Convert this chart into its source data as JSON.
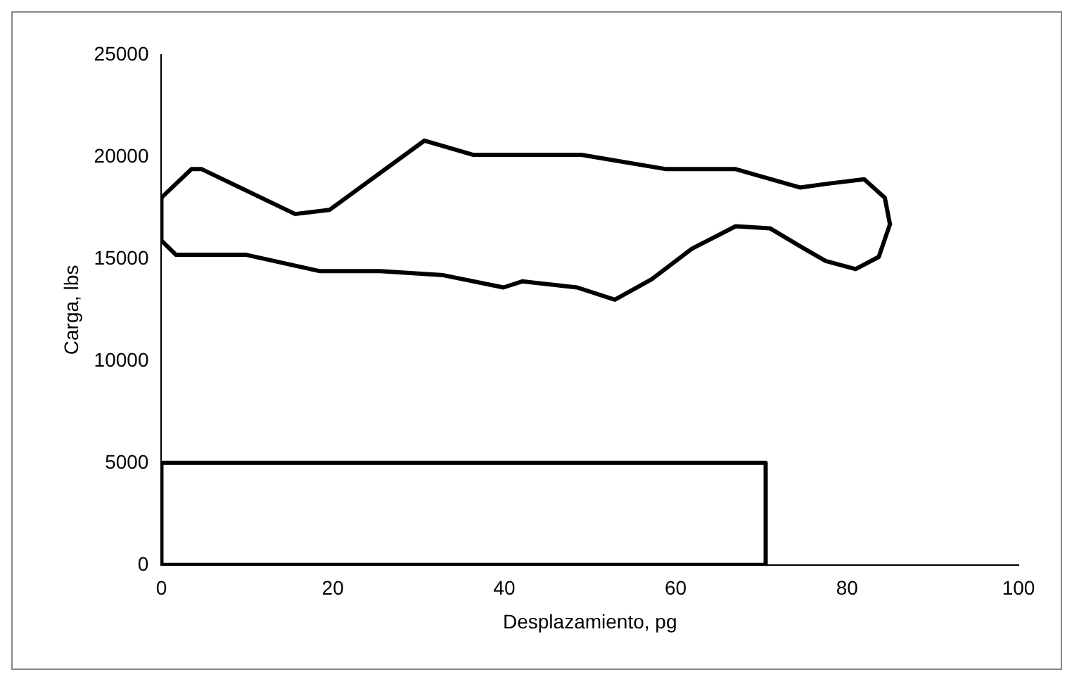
{
  "chart_data": {
    "type": "line",
    "xlabel": "Desplazamiento, pg",
    "ylabel": "Carga, lbs",
    "xlim": [
      0,
      100
    ],
    "xticks": [
      0,
      20,
      40,
      60,
      80,
      100
    ],
    "ylim": [
      0,
      25000
    ],
    "yticks": [
      0,
      5000,
      10000,
      15000,
      20000,
      25000
    ],
    "grid": false,
    "legend": false,
    "marker": "none",
    "line_style": "solid",
    "series": [
      {
        "color": "#000000",
        "x": [
          0,
          3.5,
          4.7,
          15.6,
          19.6,
          30.7,
          36.4,
          49,
          58.9,
          67,
          74.5,
          78,
          82,
          84.4,
          85
        ],
        "values": [
          18000,
          19400,
          19400,
          17200,
          17400,
          20800,
          20100,
          20100,
          19400,
          19400,
          18500,
          18700,
          18900,
          18000,
          16700
        ]
      },
      {
        "color": "#000000",
        "x": [
          0,
          0,
          1.7,
          5.2,
          9.9,
          18.5,
          25.5,
          32.9,
          39.9,
          42.1,
          48.5,
          52.9,
          57.2,
          61.9,
          67,
          71,
          75,
          77.5,
          81,
          83.7,
          85
        ],
        "values": [
          18000,
          15900,
          15200,
          15200,
          15200,
          14400,
          14400,
          14200,
          13600,
          13900,
          13600,
          13000,
          14000,
          15500,
          16600,
          16500,
          15500,
          14900,
          14500,
          15100,
          16700
        ]
      },
      {
        "color": "#000000",
        "x": [
          0,
          0,
          70.5,
          70.5
        ],
        "values": [
          0,
          5000,
          5000,
          0
        ]
      },
      {
        "color": "#000000",
        "x": [
          0,
          70.5
        ],
        "values": [
          0,
          0
        ]
      }
    ]
  }
}
